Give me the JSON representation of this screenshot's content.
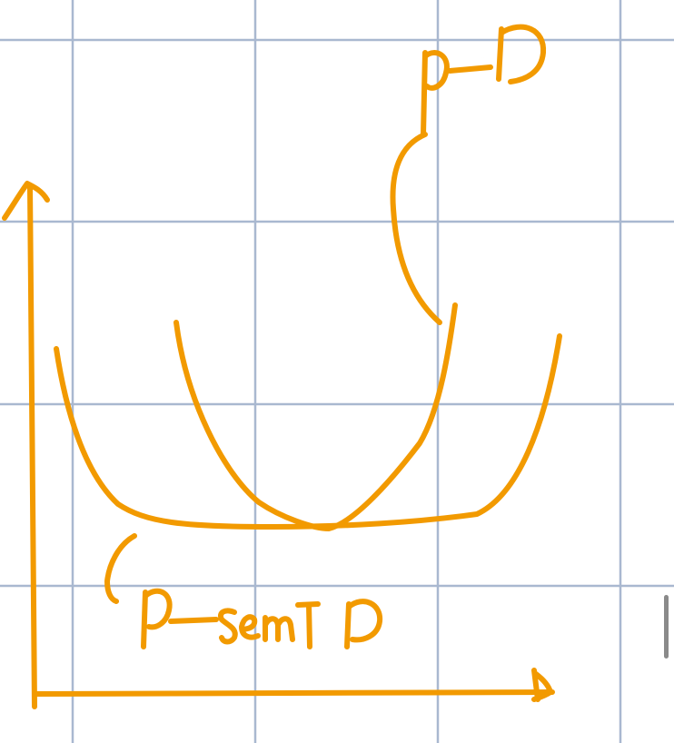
{
  "canvas": {
    "background_color": "#ffffff",
    "grid_color": "#a9b8d0",
    "ink_color": "#f29a00"
  },
  "sketch": {
    "labels": {
      "top_label": "p-p",
      "bottom_label": "p-semip"
    }
  }
}
